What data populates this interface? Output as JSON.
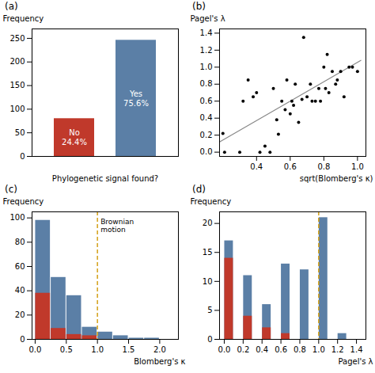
{
  "chart_data": [
    {
      "type": "bar",
      "title": "(a)",
      "categories": [
        "No",
        "Yes"
      ],
      "values": [
        80,
        246
      ],
      "percentages": [
        "24.4%",
        "75.6%"
      ],
      "colors": [
        "#c0392b",
        "#5b7fa6"
      ],
      "xlabel": "Phylogenetic signal found?",
      "ylabel": "Frequency",
      "ylim": [
        0,
        270
      ],
      "yticks": [
        0,
        50,
        100,
        150,
        200,
        250
      ],
      "tick_labels": "y"
    },
    {
      "type": "scatter",
      "title": "(b)",
      "x": [
        0.2,
        0.21,
        0.3,
        0.32,
        0.35,
        0.38,
        0.4,
        0.42,
        0.45,
        0.48,
        0.5,
        0.52,
        0.53,
        0.55,
        0.57,
        0.58,
        0.6,
        0.61,
        0.62,
        0.63,
        0.65,
        0.67,
        0.68,
        0.7,
        0.72,
        0.73,
        0.75,
        0.77,
        0.78,
        0.8,
        0.81,
        0.82,
        0.83,
        0.85,
        0.87,
        0.88,
        0.9,
        0.92,
        0.95,
        0.97,
        1.0
      ],
      "y": [
        0.22,
        0.0,
        0.0,
        0.6,
        0.85,
        0.65,
        0.7,
        0.0,
        0.07,
        0.0,
        0.75,
        0.38,
        0.21,
        0.6,
        0.5,
        0.85,
        0.45,
        0.6,
        0.55,
        0.8,
        0.35,
        0.62,
        1.35,
        0.65,
        0.8,
        0.6,
        0.6,
        0.75,
        0.6,
        1.0,
        0.75,
        1.15,
        0.7,
        0.95,
        0.8,
        0.85,
        0.95,
        0.65,
        1.0,
        1.0,
        0.95
      ],
      "fit": {
        "x": [
          0.18,
          1.02
        ],
        "y": [
          0.12,
          1.08
        ],
        "color": "#888888"
      },
      "xlabel": "sqrt(Blomberg's κ)",
      "ylabel": "Pagel's λ",
      "xlim": [
        0.18,
        1.05
      ],
      "ylim": [
        -0.05,
        1.45
      ],
      "xticks": [
        0.4,
        0.6,
        0.8,
        {
          "value": 1.0,
          "label": "1.0"
        }
      ],
      "yticks": [
        {
          "value": 0.0,
          "label": "0.0"
        },
        0.2,
        0.4,
        0.6,
        0.8,
        {
          "value": 1.0,
          "label": "1.0"
        },
        1.2,
        1.4
      ]
    },
    {
      "type": "histogram",
      "title": "(c)",
      "bins": [
        0.0,
        0.25,
        0.5,
        0.75,
        1.0,
        1.25,
        1.5,
        1.75,
        2.0,
        2.25
      ],
      "series": [
        {
          "color": "#5b7fa6",
          "values": [
            98,
            51,
            36,
            10,
            6,
            3,
            1,
            1,
            0
          ]
        },
        {
          "color": "#c0392b",
          "values": [
            38,
            9,
            4,
            3,
            0,
            0,
            0,
            0,
            0
          ]
        }
      ],
      "stacked": false,
      "vline": {
        "x": 1.0,
        "color": "#d4a017",
        "line_style": "dashed",
        "label": "Brownian\nmotion"
      },
      "xlabel": "Blomberg's κ",
      "ylabel": "Frequency",
      "xlim": [
        -0.05,
        2.3
      ],
      "ylim": [
        0,
        105
      ],
      "xticks": [
        {
          "value": 0.0,
          "label": "0.0"
        },
        0.5,
        {
          "value": 1.0,
          "label": "1.0"
        },
        1.5,
        {
          "value": 2.0,
          "label": "2.0"
        }
      ],
      "yticks": [
        0,
        20,
        40,
        60,
        80,
        100
      ]
    },
    {
      "type": "histogram",
      "title": "(d)",
      "bins": [
        0.0,
        0.1,
        0.2,
        0.3,
        0.4,
        0.5,
        0.6,
        0.7,
        0.8,
        0.9,
        1.0,
        1.1,
        1.2,
        1.3,
        1.4
      ],
      "series": [
        {
          "color": "#5b7fa6",
          "values": [
            17,
            0,
            11,
            0,
            6,
            0,
            13,
            0,
            12,
            0,
            21,
            0,
            1,
            0
          ]
        },
        {
          "color": "#c0392b",
          "values": [
            14,
            0,
            4,
            0,
            2,
            0,
            1,
            0,
            0,
            0,
            0,
            0,
            0,
            0
          ]
        }
      ],
      "stacked": false,
      "vline": {
        "x": 1.0,
        "color": "#d4a017",
        "line_style": "dashed"
      },
      "xlabel": "Pagel's λ",
      "ylabel": "Frequency",
      "xlim": [
        -0.05,
        1.5
      ],
      "ylim": [
        0,
        22
      ],
      "xticks": [
        {
          "value": 0.0,
          "label": "0.0"
        },
        0.2,
        0.4,
        0.6,
        0.8,
        {
          "value": 1.0,
          "label": "1.0"
        },
        1.2,
        1.4
      ],
      "yticks": [
        0,
        5,
        10,
        15,
        20
      ]
    }
  ]
}
